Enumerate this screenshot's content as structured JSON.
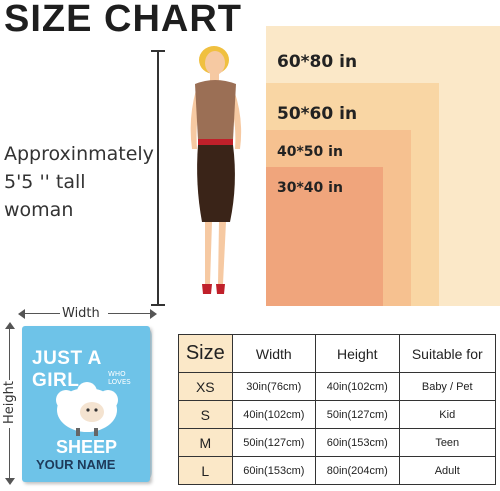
{
  "title": "SIZE CHART",
  "caption": {
    "line1": "Approxinmately",
    "line2": "5'5 '' tall woman"
  },
  "blocks": [
    {
      "label": "60*80 in",
      "color": "#fbe8c8"
    },
    {
      "label": "50*60 in",
      "color": "#f9d6a4"
    },
    {
      "label": "40*50 in",
      "color": "#f6c190"
    },
    {
      "label": "30*40 in",
      "color": "#f0a57c"
    }
  ],
  "blanket": {
    "width_label": "Width",
    "height_label": "Height",
    "line1": "JUST A GIRL",
    "line2": "WHO LOVES",
    "line3": "SHEEP",
    "line4": "YOUR NAME"
  },
  "table": {
    "headers": [
      "Size",
      "Width",
      "Height",
      "Suitable for"
    ],
    "rows": [
      [
        "XS",
        "30in(76cm)",
        "40in(102cm)",
        "Baby / Pet"
      ],
      [
        "S",
        "40in(102cm)",
        "50in(127cm)",
        "Kid"
      ],
      [
        "M",
        "50in(127cm)",
        "60in(153cm)",
        "Teen"
      ],
      [
        "L",
        "60in(153cm)",
        "80in(204cm)",
        "Adult"
      ]
    ]
  }
}
